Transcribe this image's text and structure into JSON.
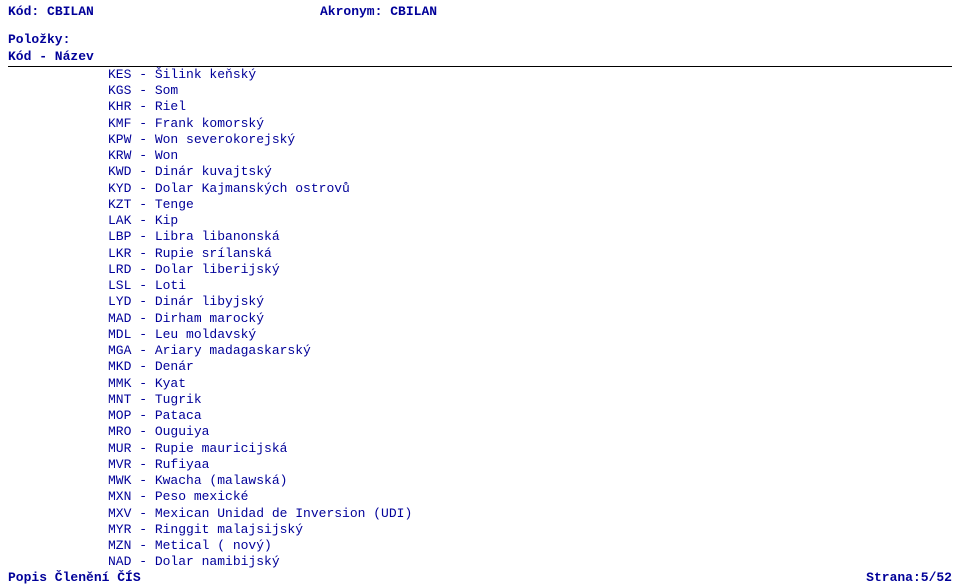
{
  "colors": {
    "text": "#000099",
    "background": "#ffffff",
    "rule": "#000000"
  },
  "header": {
    "kod_label": "Kód:",
    "kod_value": "CBILAN",
    "akronym_label": "Akronym:",
    "akronym_value": "CBILAN"
  },
  "subheader": {
    "polozky": "Položky:",
    "kod_nazev": "Kód - Název"
  },
  "rows": [
    {
      "code": "KES",
      "name": "Šilink keňský"
    },
    {
      "code": "KGS",
      "name": "Som"
    },
    {
      "code": "KHR",
      "name": "Riel"
    },
    {
      "code": "KMF",
      "name": "Frank komorský"
    },
    {
      "code": "KPW",
      "name": "Won severokorejský"
    },
    {
      "code": "KRW",
      "name": "Won"
    },
    {
      "code": "KWD",
      "name": "Dinár kuvajtský"
    },
    {
      "code": "KYD",
      "name": "Dolar Kajmanských ostrovů"
    },
    {
      "code": "KZT",
      "name": "Tenge"
    },
    {
      "code": "LAK",
      "name": "Kip"
    },
    {
      "code": "LBP",
      "name": "Libra libanonská"
    },
    {
      "code": "LKR",
      "name": "Rupie srílanská"
    },
    {
      "code": "LRD",
      "name": "Dolar liberijský"
    },
    {
      "code": "LSL",
      "name": "Loti"
    },
    {
      "code": "LYD",
      "name": "Dinár libyjský"
    },
    {
      "code": "MAD",
      "name": "Dirham marocký"
    },
    {
      "code": "MDL",
      "name": "Leu moldavský"
    },
    {
      "code": "MGA",
      "name": "Ariary madagaskarský"
    },
    {
      "code": "MKD",
      "name": "Denár"
    },
    {
      "code": "MMK",
      "name": "Kyat"
    },
    {
      "code": "MNT",
      "name": "Tugrik"
    },
    {
      "code": "MOP",
      "name": "Pataca"
    },
    {
      "code": "MRO",
      "name": "Ouguiya"
    },
    {
      "code": "MUR",
      "name": "Rupie mauricijská"
    },
    {
      "code": "MVR",
      "name": "Rufiyaa"
    },
    {
      "code": "MWK",
      "name": "Kwacha (malawská)"
    },
    {
      "code": "MXN",
      "name": "Peso mexické"
    },
    {
      "code": "MXV",
      "name": "Mexican Unidad de Inversion (UDI)"
    },
    {
      "code": "MYR",
      "name": "Ringgit malajsijský"
    },
    {
      "code": "MZN",
      "name": "Metical ( nový)"
    },
    {
      "code": "NAD",
      "name": "Dolar namibijský"
    }
  ],
  "footer": {
    "left": "Popis Členění ČÍS",
    "right": "Strana:5/52"
  }
}
